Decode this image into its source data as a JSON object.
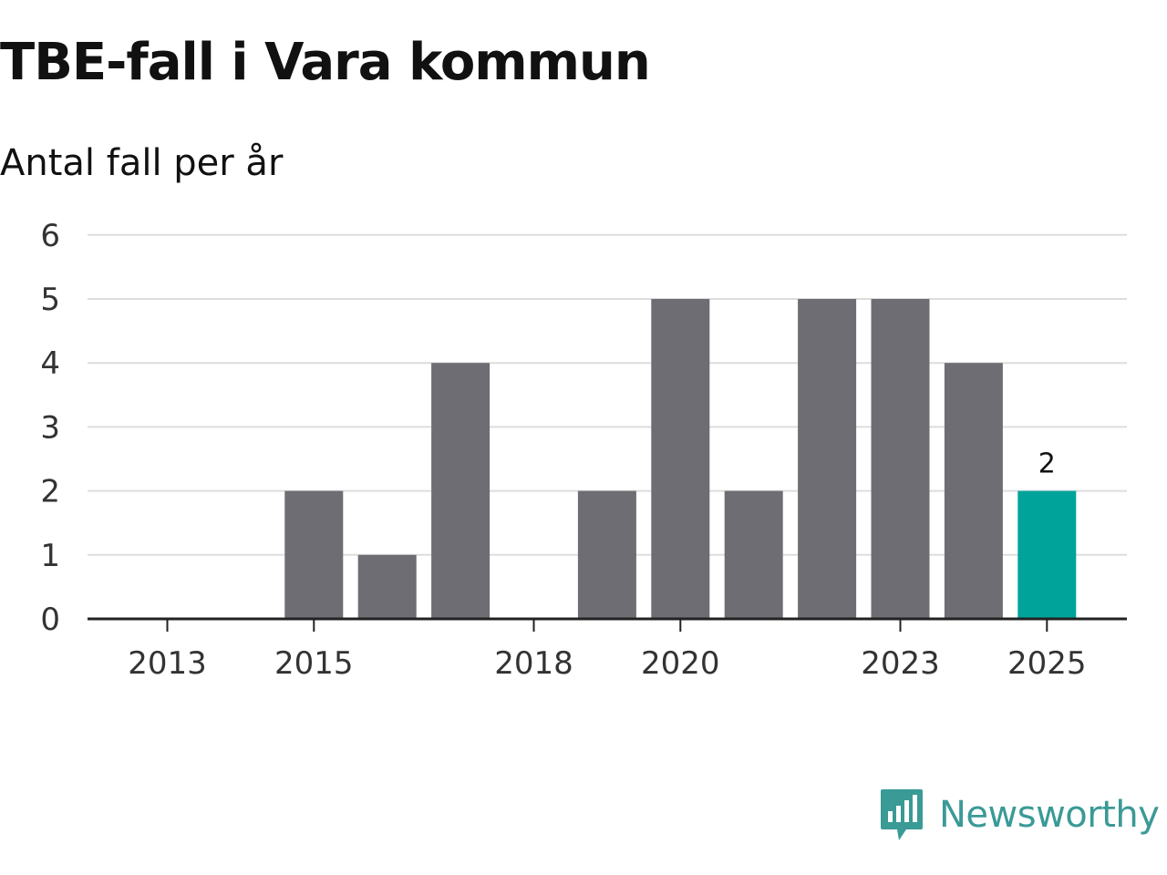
{
  "title": "TBE-fall i Vara kommun",
  "subtitle": "Antal fall per år",
  "brand": {
    "name": "Newsworthy",
    "logo_icon": "bar-chart-speech-bubble-icon",
    "color": "#3a9a96"
  },
  "colors": {
    "bar": "#6e6d73",
    "highlight": "#00a39a",
    "grid": "#dddddd",
    "axis": "#222222"
  },
  "chart_data": {
    "type": "bar",
    "title": "TBE-fall i Vara kommun",
    "subtitle": "Antal fall per år",
    "xlabel": "",
    "ylabel": "",
    "categories": [
      "2013",
      "2014",
      "2015",
      "2016",
      "2017",
      "2018",
      "2019",
      "2020",
      "2021",
      "2022",
      "2023",
      "2024",
      "2025"
    ],
    "values": [
      0,
      0,
      2,
      1,
      4,
      0,
      2,
      5,
      2,
      5,
      5,
      4,
      2
    ],
    "highlight_index": 12,
    "data_labels": [
      {
        "index": 12,
        "text": "2"
      }
    ],
    "x_tick_labels": [
      "2013",
      "2015",
      "2018",
      "2020",
      "2023",
      "2025"
    ],
    "y_ticks": [
      "0",
      "1",
      "2",
      "3",
      "4",
      "5",
      "6"
    ],
    "ylim": [
      0,
      6
    ],
    "grid": true
  }
}
